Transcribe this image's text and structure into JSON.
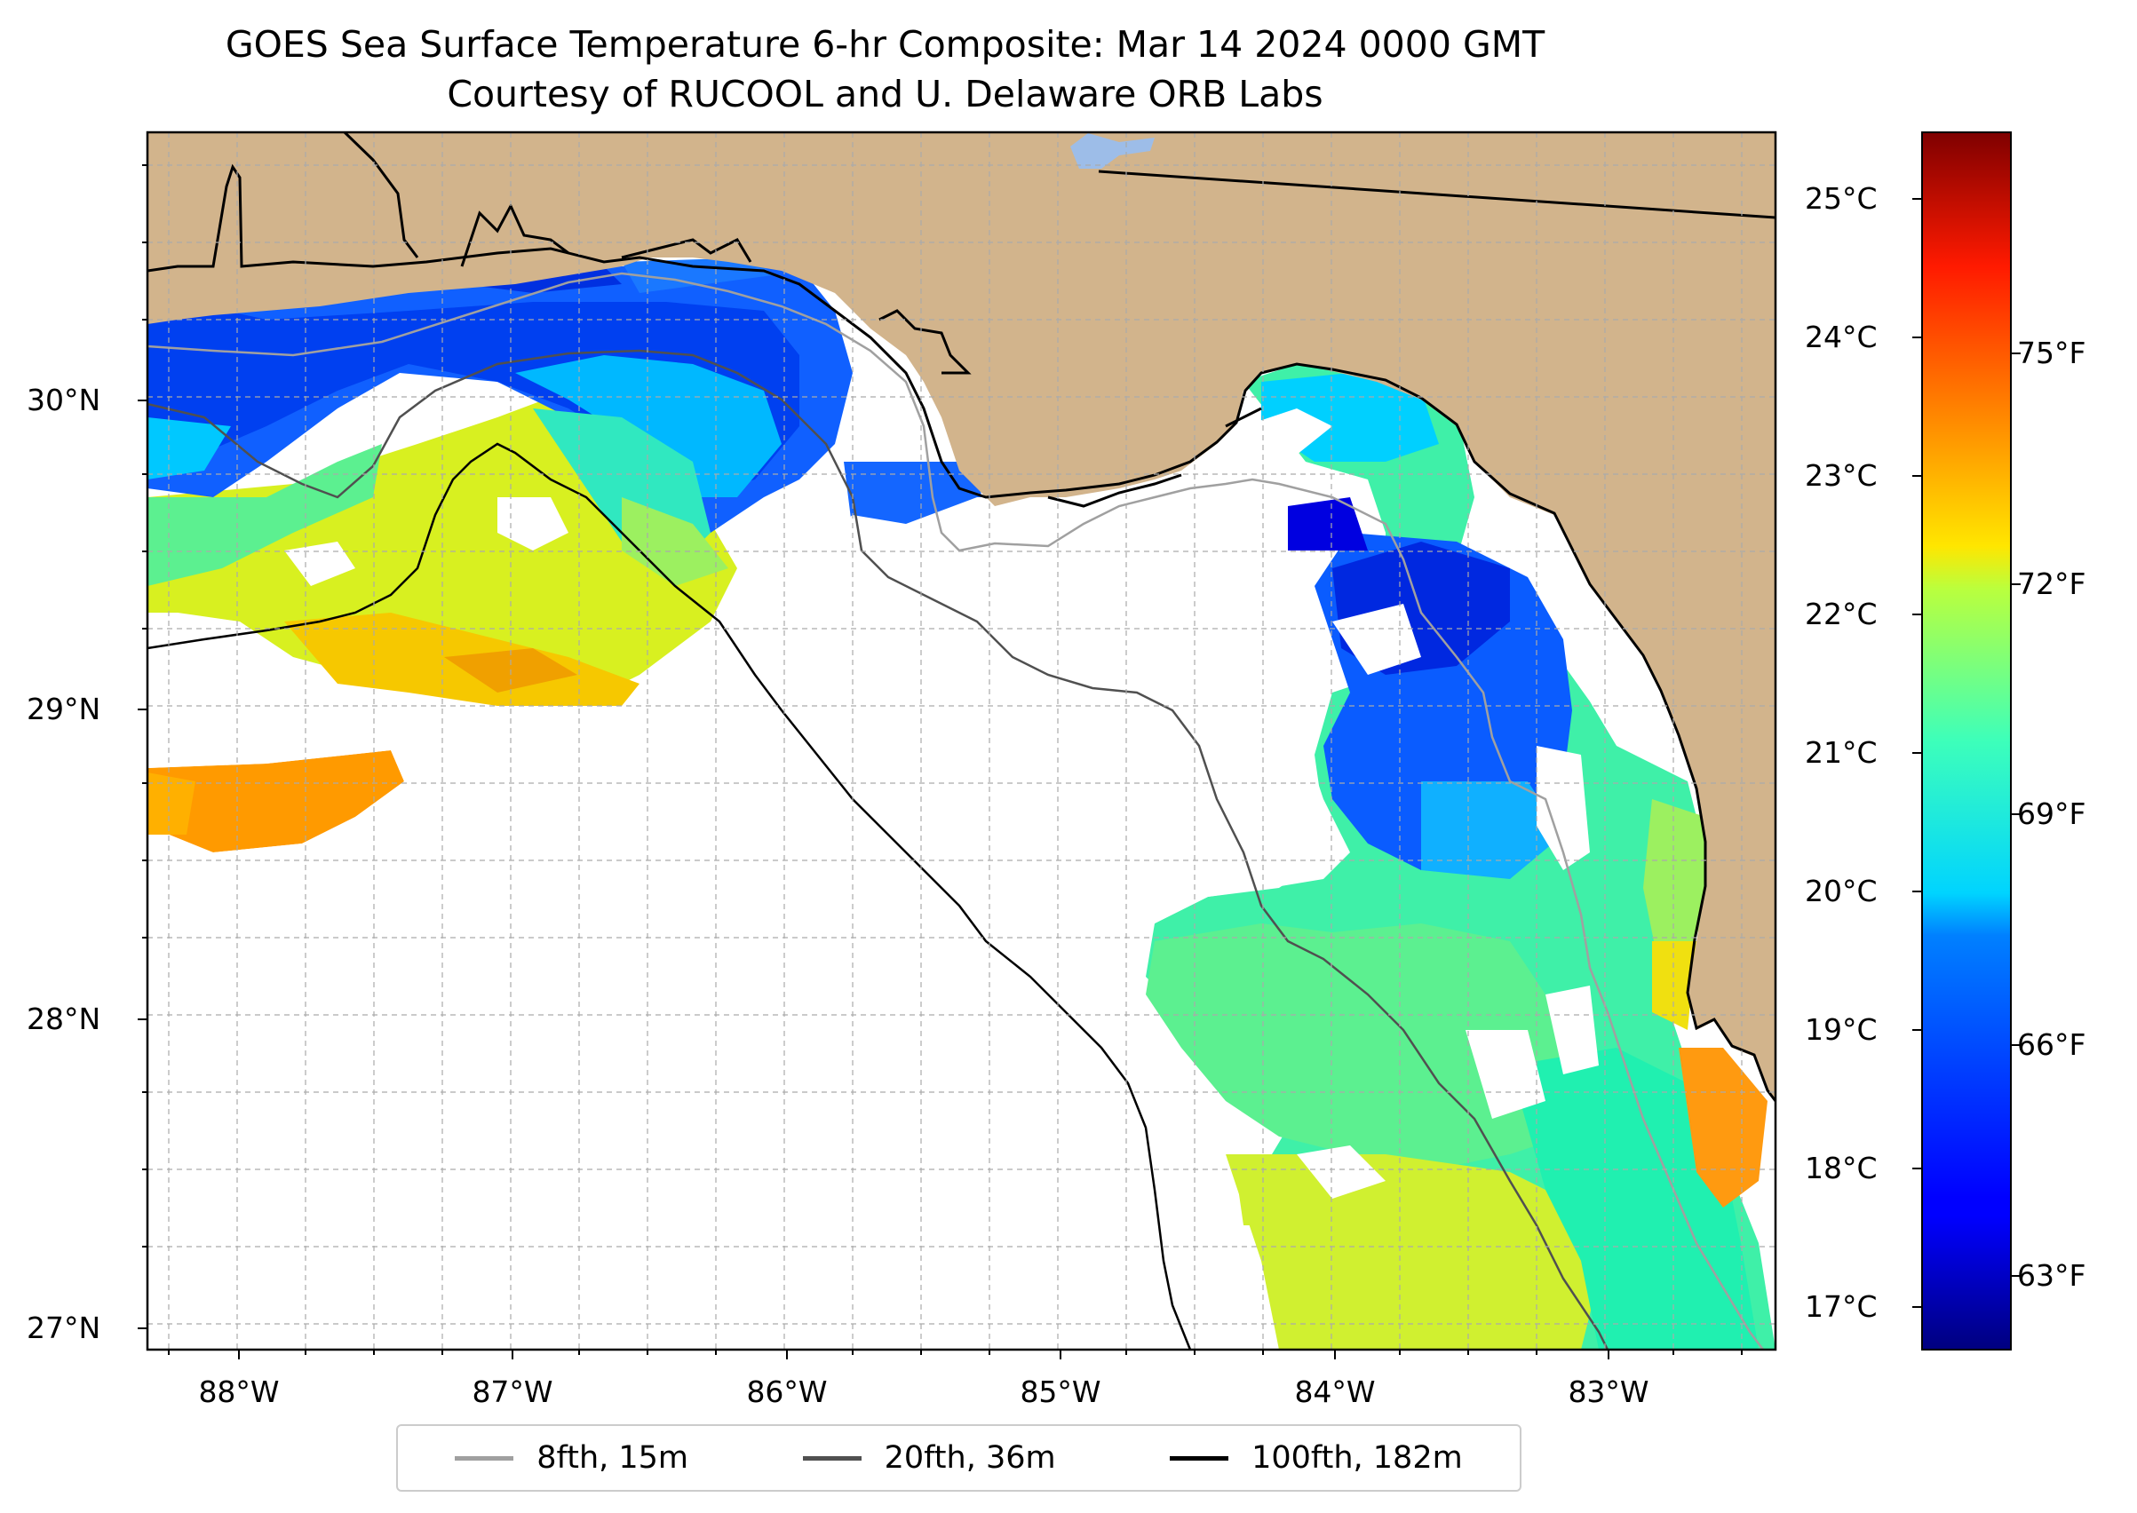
{
  "title": "GOES Sea Surface Temperature 6-hr Composite: Mar 14 2024 0000 GMT",
  "subtitle": "Courtesy of RUCOOL and U. Delaware ORB Labs",
  "map": {
    "land_color": "#d2b48c",
    "lat_labels": [
      "30°N",
      "29°N",
      "28°N",
      "27°N"
    ],
    "lon_labels": [
      "88°W",
      "87°W",
      "86°W",
      "85°W",
      "84°W",
      "83°W"
    ]
  },
  "colorbar": {
    "colormap": "jet",
    "celsius_labels": [
      "25°C",
      "24°C",
      "23°C",
      "22°C",
      "21°C",
      "20°C",
      "19°C",
      "18°C",
      "17°C"
    ],
    "fahrenheit_labels": [
      "75°F",
      "72°F",
      "69°F",
      "66°F",
      "63°F"
    ]
  },
  "legend": [
    {
      "label": "8fth, 15m",
      "color": "#a0a0a0"
    },
    {
      "label": "20fth, 36m",
      "color": "#505050"
    },
    {
      "label": "100fth, 182m",
      "color": "#000000"
    }
  ]
}
